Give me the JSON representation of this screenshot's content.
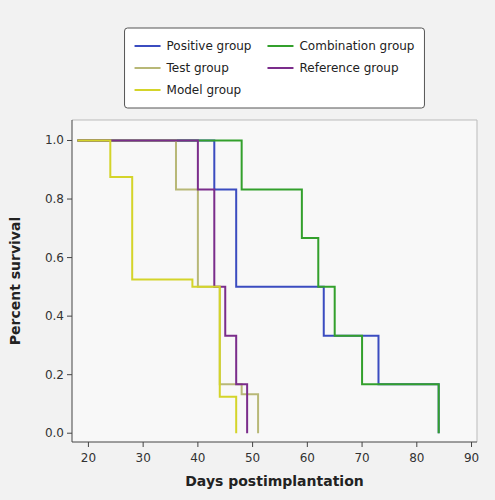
{
  "chart_data": {
    "type": "step",
    "xlabel": "Days postimplantation",
    "ylabel": "Percent survival",
    "xlim": [
      17,
      91
    ],
    "ylim": [
      -0.03,
      1.07
    ],
    "xticks": [
      20,
      30,
      40,
      50,
      60,
      70,
      80,
      90
    ],
    "yticks": [
      {
        "value": 0,
        "label": "0.0"
      },
      0.2,
      0.4,
      0.6,
      0.8,
      {
        "value": 1,
        "label": "1.0"
      }
    ],
    "grid": false,
    "legend": "top",
    "series": [
      {
        "name": "Positive group",
        "color": "#3b4cc0",
        "x": [
          18,
          43,
          47,
          60,
          63,
          73,
          84
        ],
        "values": [
          1.0,
          0.833,
          0.5,
          0.5,
          0.333,
          0.167,
          0.0
        ]
      },
      {
        "name": "Combination group",
        "color": "#33a02c",
        "x": [
          18,
          48,
          59,
          62,
          65,
          70,
          84
        ],
        "values": [
          1.0,
          0.833,
          0.667,
          0.5,
          0.333,
          0.167,
          0.0
        ]
      },
      {
        "name": "Test group",
        "color": "#b8b877",
        "x": [
          18,
          36,
          40,
          44,
          48,
          51
        ],
        "values": [
          1.0,
          0.833,
          0.5,
          0.167,
          0.133,
          0.0
        ]
      },
      {
        "name": "Reference group",
        "color": "#7b2d8b",
        "x": [
          18,
          40,
          43,
          45,
          47,
          49
        ],
        "values": [
          1.0,
          0.833,
          0.5,
          0.333,
          0.167,
          0.0
        ]
      },
      {
        "name": "Model group",
        "color": "#d4d42a",
        "x": [
          18,
          24,
          28,
          39,
          44,
          47
        ],
        "values": [
          1.0,
          0.875,
          0.525,
          0.5,
          0.125,
          0.0
        ]
      }
    ]
  }
}
